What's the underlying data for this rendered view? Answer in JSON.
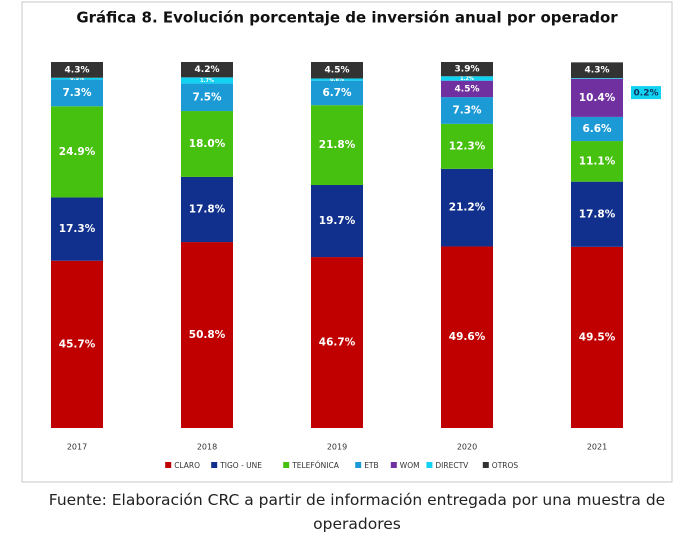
{
  "chart_data": {
    "type": "stacked_bar",
    "title": "Gráfica 8. Evolución porcentaje de inversión anual por operador",
    "categories": [
      "2017",
      "2018",
      "2019",
      "2020",
      "2021"
    ],
    "series": [
      {
        "name": "CLARO",
        "color": "#c00000",
        "values": [
          45.7,
          50.8,
          46.7,
          49.6,
          49.5
        ],
        "value_labels": [
          "45.7%",
          "50.8%",
          "46.7%",
          "49.6%",
          "49.5%"
        ]
      },
      {
        "name": "TIGO - UNE",
        "color": "#112f8c",
        "values": [
          17.3,
          17.8,
          19.7,
          21.2,
          17.8
        ],
        "value_labels": [
          "17.3%",
          "17.8%",
          "19.7%",
          "21.2%",
          "17.8%"
        ]
      },
      {
        "name": "TELEFÓNICA",
        "color": "#47c10f",
        "values": [
          24.9,
          18.0,
          21.8,
          12.3,
          11.1
        ],
        "value_labels": [
          "24.9%",
          "18.0%",
          "21.8%",
          "12.3%",
          "11.1%"
        ]
      },
      {
        "name": "ETB",
        "color": "#1b9ad6",
        "values": [
          7.3,
          7.5,
          6.7,
          7.3,
          6.6
        ],
        "value_labels": [
          "7.3%",
          "7.5%",
          "6.7%",
          "7.3%",
          "6.6%"
        ]
      },
      {
        "name": "WOM",
        "color": "#7030a0",
        "values": [
          null,
          null,
          null,
          4.5,
          10.4
        ],
        "value_labels": [
          null,
          null,
          null,
          "4.5%",
          "10.4%"
        ]
      },
      {
        "name": "DIRECTV",
        "color": "#12d2f2",
        "values": [
          0.5,
          1.7,
          0.6,
          1.2,
          0.2
        ],
        "value_labels": [
          "0.5%",
          "1.7%",
          "0.6%",
          "1.2%",
          "0.2%"
        ]
      },
      {
        "name": "OTROS",
        "color": "#333333",
        "values": [
          4.3,
          4.2,
          4.5,
          3.9,
          4.3
        ],
        "value_labels": [
          "4.3%",
          "4.2%",
          "4.5%",
          "3.9%",
          "4.3%"
        ]
      }
    ],
    "source": "Fuente: Elaboración CRC a partir de información entregada por una muestra de operadores"
  }
}
